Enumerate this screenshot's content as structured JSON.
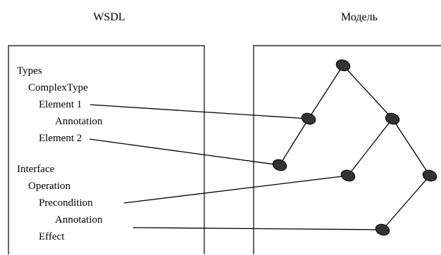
{
  "headers": {
    "left": "WSDL",
    "right": "Модель"
  },
  "wsdl_tree": [
    {
      "label": "Types"
    },
    {
      "label": "ComplexType"
    },
    {
      "label": "Element 1"
    },
    {
      "label": "Annotation"
    },
    {
      "label": "Element 2"
    },
    {
      "label": "Interface"
    },
    {
      "label": "Operation"
    },
    {
      "label": "Precondition"
    },
    {
      "label": "Annotation"
    },
    {
      "label": "Effect"
    }
  ],
  "model_nodes": [
    {
      "id": "root"
    },
    {
      "id": "left-child"
    },
    {
      "id": "left-leaf"
    },
    {
      "id": "right-child"
    },
    {
      "id": "mid-right"
    },
    {
      "id": "far-right"
    },
    {
      "id": "bottom"
    }
  ],
  "model_edges": [
    [
      "root",
      "left-child"
    ],
    [
      "left-child",
      "left-leaf"
    ],
    [
      "root",
      "right-child"
    ],
    [
      "right-child",
      "mid-right"
    ],
    [
      "right-child",
      "far-right"
    ],
    [
      "far-right",
      "bottom"
    ]
  ],
  "mappings": [
    {
      "from": "Element 1",
      "to": "left-child"
    },
    {
      "from": "Element 2",
      "to": "left-leaf"
    },
    {
      "from": "Precondition",
      "to": "mid-right"
    },
    {
      "from": "Annotation",
      "to": "bottom"
    }
  ]
}
